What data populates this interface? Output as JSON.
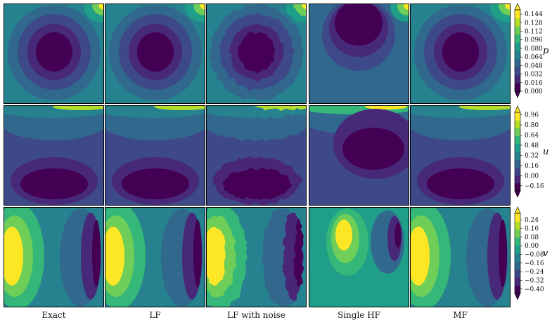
{
  "chart_data": {
    "type": "heatmap",
    "title": "",
    "columns": [
      "Exact",
      "LF",
      "LF with noise",
      "Single HF",
      "MF"
    ],
    "rows": [
      {
        "variable": "p",
        "colorbar_ticks": [
          "0.144",
          "0.128",
          "0.112",
          "0.096",
          "0.080",
          "0.064",
          "0.048",
          "0.032",
          "0.016",
          "0.000"
        ],
        "range": [
          0.0,
          0.152
        ]
      },
      {
        "variable": "u",
        "colorbar_ticks": [
          "0.96",
          "0.80",
          "0.64",
          "0.48",
          "0.32",
          "0.16",
          "0.00",
          "−0.16"
        ],
        "range": [
          -0.24,
          1.0
        ]
      },
      {
        "variable": "v",
        "colorbar_ticks": [
          "0.24",
          "0.16",
          "0.08",
          "0.00",
          "−0.08",
          "−0.16",
          "−0.24",
          "−0.32",
          "−0.40"
        ],
        "range": [
          -0.44,
          0.3
        ]
      }
    ],
    "colormap": "viridis",
    "colors": [
      "#440154",
      "#482878",
      "#3e4989",
      "#31688e",
      "#26828e",
      "#1f9e89",
      "#35b779",
      "#6ece58",
      "#b5de2b",
      "#fde725"
    ],
    "grid": false,
    "legend": "colorbar right of each row"
  }
}
